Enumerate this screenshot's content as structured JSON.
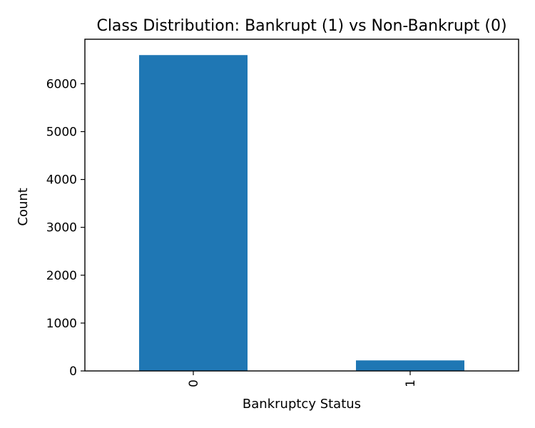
{
  "chart_data": {
    "type": "bar",
    "title": "Class Distribution: Bankrupt (1) vs Non-Bankrupt (0)",
    "xlabel": "Bankruptcy Status",
    "ylabel": "Count",
    "categories": [
      "0",
      "1"
    ],
    "values": [
      6599,
      220
    ],
    "ylim": [
      0,
      6930
    ],
    "yticks": [
      0,
      1000,
      2000,
      3000,
      4000,
      5000,
      6000
    ],
    "ytick_labels": [
      "0",
      "1000",
      "2000",
      "3000",
      "4000",
      "5000",
      "6000"
    ],
    "xtick_rotation": "vertical",
    "bar_color": "#1f77b4",
    "grid": false,
    "legend": "none"
  }
}
